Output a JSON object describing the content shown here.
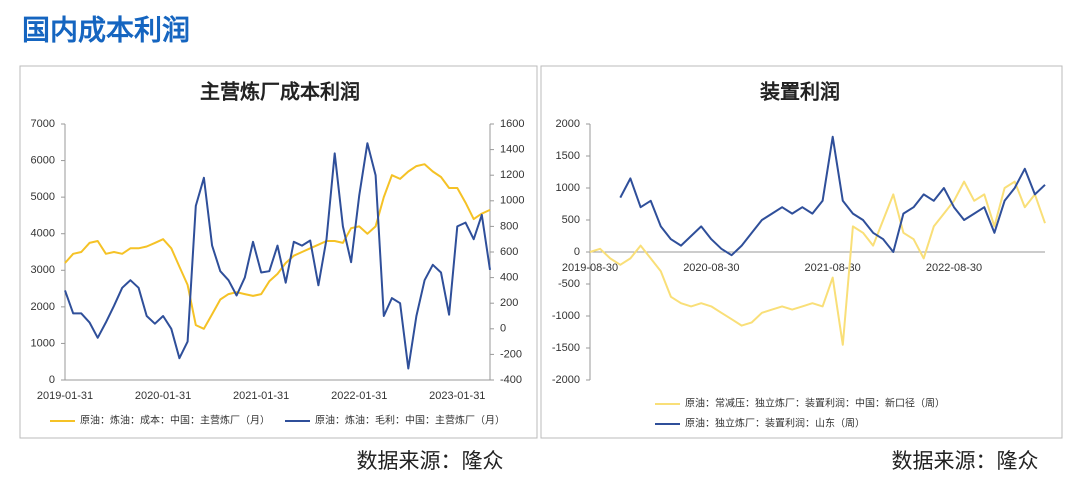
{
  "header": {
    "title": "国内成本利润"
  },
  "sources": [
    "数据来源：隆众",
    "数据来源：隆众"
  ],
  "chart_data": [
    {
      "type": "line",
      "title": "主营炼厂成本利润",
      "categories": [
        "2019-01-31",
        null,
        null,
        null,
        null,
        null,
        null,
        null,
        null,
        null,
        null,
        null,
        "2020-01-31",
        null,
        null,
        null,
        null,
        null,
        null,
        null,
        null,
        null,
        null,
        null,
        "2021-01-31",
        null,
        null,
        null,
        null,
        null,
        null,
        null,
        null,
        null,
        null,
        null,
        "2022-01-31",
        null,
        null,
        null,
        null,
        null,
        null,
        null,
        null,
        null,
        null,
        null,
        "2023-01-31",
        null,
        null,
        null,
        null
      ],
      "series": [
        {
          "name": "原油：炼油：成本：中国：主营炼厂（月）",
          "color": "#f5c226",
          "values": [
            3200,
            3450,
            3500,
            3750,
            3800,
            3450,
            3500,
            3450,
            3600,
            3600,
            3650,
            3750,
            3850,
            3600,
            3100,
            2600,
            1500,
            1400,
            1800,
            2200,
            2350,
            2400,
            2350,
            2300,
            2350,
            2700,
            2900,
            3200,
            3400,
            3500,
            3600,
            3700,
            3800,
            3800,
            3750,
            4150,
            4200,
            4000,
            4200,
            5000,
            5600,
            5500,
            5700,
            5850,
            5900,
            5700,
            5550,
            5250,
            5250,
            4850,
            4400,
            4550,
            4650
          ]
        },
        {
          "name": "原油：炼油：毛利：中国：主营炼厂（月）",
          "color": "#2f4f9a",
          "axis": "y2",
          "values": [
            300,
            120,
            120,
            50,
            -70,
            50,
            180,
            320,
            380,
            320,
            100,
            40,
            100,
            0,
            -230,
            -100,
            960,
            1180,
            650,
            450,
            380,
            260,
            400,
            680,
            440,
            450,
            650,
            360,
            680,
            650,
            690,
            340,
            700,
            1370,
            800,
            520,
            1040,
            1450,
            1200,
            100,
            240,
            200,
            -310,
            100,
            380,
            500,
            440,
            110,
            800,
            830,
            700,
            890,
            460
          ]
        }
      ],
      "ylim": [
        0,
        7000
      ],
      "yticks": [
        0,
        1000,
        2000,
        3000,
        4000,
        5000,
        6000,
        7000
      ],
      "y2lim": [
        -400,
        1600
      ],
      "y2ticks": [
        -400,
        -200,
        0,
        200,
        400,
        600,
        800,
        1000,
        1200,
        1400,
        1600
      ]
    },
    {
      "type": "line",
      "title": "装置利润",
      "categories": [
        "2019-08-30",
        null,
        null,
        null,
        null,
        null,
        null,
        null,
        null,
        null,
        null,
        null,
        "2020-08-30",
        null,
        null,
        null,
        null,
        null,
        null,
        null,
        null,
        null,
        null,
        null,
        "2021-08-30",
        null,
        null,
        null,
        null,
        null,
        null,
        null,
        null,
        null,
        null,
        null,
        "2022-08-30",
        null,
        null,
        null,
        null,
        null,
        null,
        null,
        null,
        null
      ],
      "series": [
        {
          "name": "原油：常减压：独立炼厂：装置利润：中国：新口径（周）",
          "color": "#f9df78",
          "values": [
            0,
            50,
            -100,
            -200,
            -100,
            100,
            -100,
            -300,
            -700,
            -800,
            -850,
            -800,
            -850,
            -950,
            -1050,
            -1150,
            -1100,
            -950,
            -900,
            -850,
            -900,
            -850,
            -800,
            -850,
            -400,
            -1450,
            400,
            300,
            100,
            500,
            900,
            300,
            200,
            -100,
            400,
            600,
            800,
            1100,
            800,
            900,
            400,
            1000,
            1100,
            700,
            900,
            450
          ]
        },
        {
          "name": "原油：独立炼厂：装置利润：山东（周）",
          "color": "#2f4f9a",
          "values": [
            null,
            null,
            null,
            850,
            1150,
            700,
            800,
            400,
            200,
            100,
            250,
            400,
            200,
            50,
            -50,
            100,
            300,
            500,
            600,
            700,
            600,
            700,
            600,
            800,
            1800,
            800,
            600,
            500,
            300,
            200,
            0,
            600,
            700,
            900,
            800,
            1000,
            700,
            500,
            600,
            700,
            300,
            800,
            1000,
            1300,
            900,
            1050
          ]
        }
      ],
      "ylim": [
        -2000,
        2000
      ],
      "yticks": [
        -2000,
        -1500,
        -1000,
        -500,
        0,
        500,
        1000,
        1500,
        2000
      ]
    }
  ]
}
